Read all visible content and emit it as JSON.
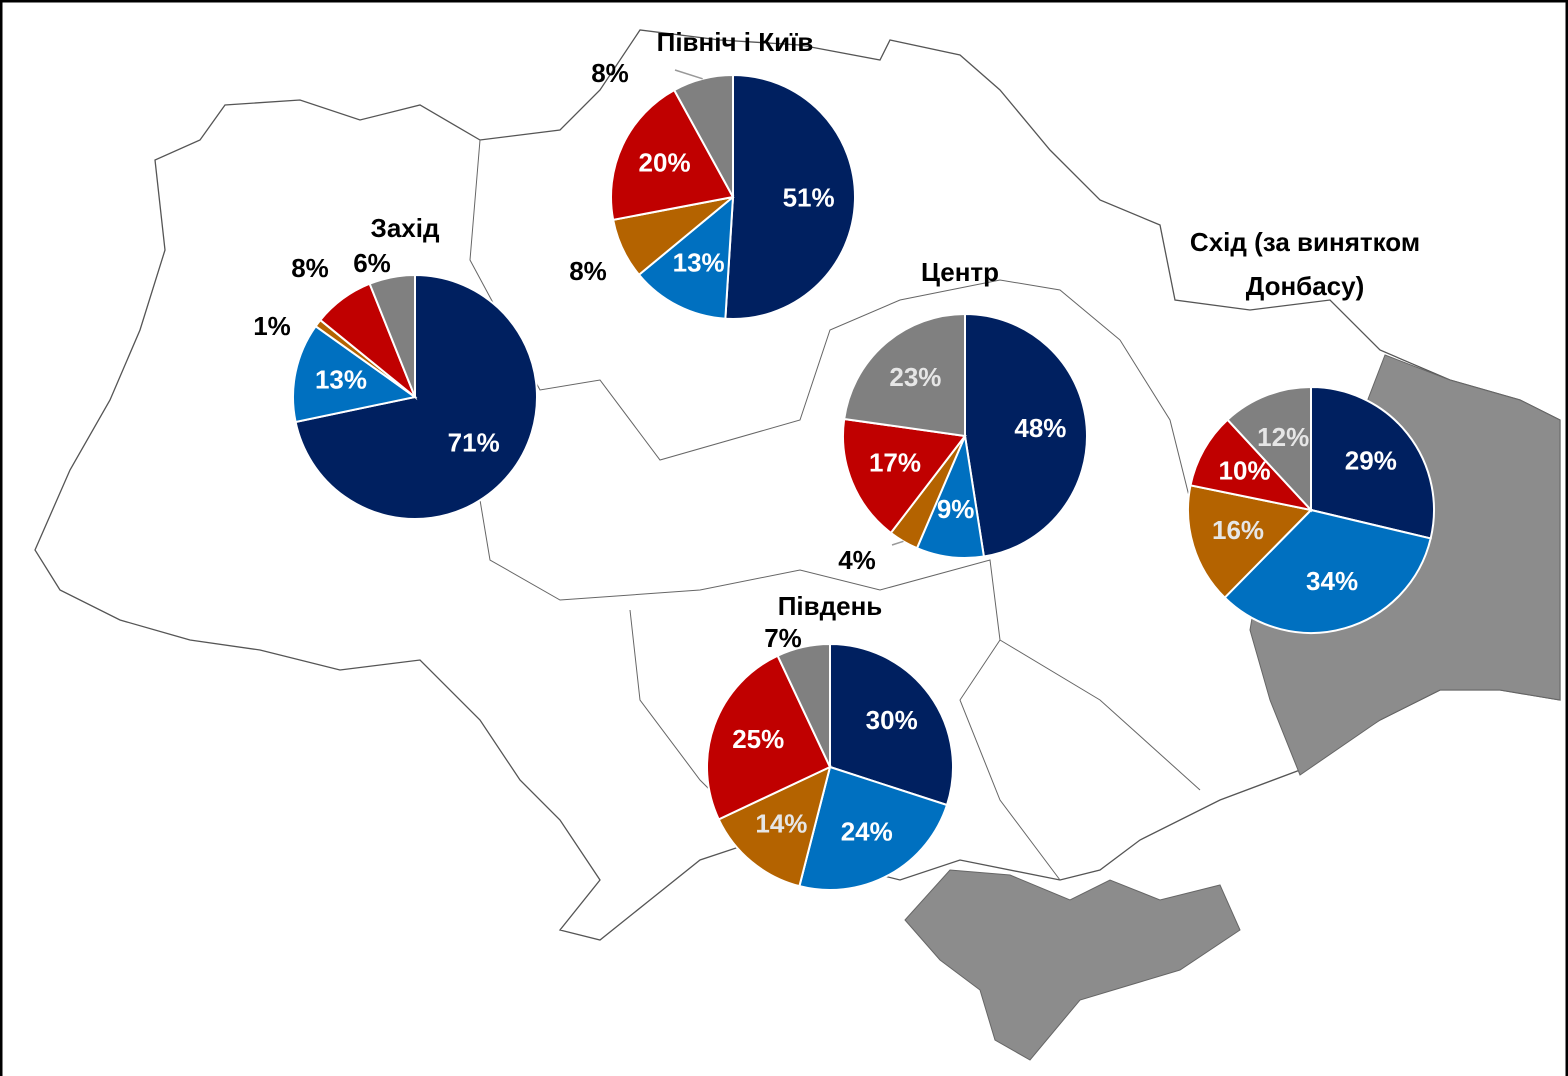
{
  "chart_data": [
    {
      "type": "pie",
      "title": "Захід",
      "values": [
        71,
        13,
        1,
        8,
        6
      ],
      "value_labels": [
        "71%",
        "13%",
        "1%",
        "8%",
        "6%"
      ],
      "colors": [
        "#002060",
        "#0070c0",
        "#b46300",
        "#c00000",
        "#808080"
      ]
    },
    {
      "type": "pie",
      "title": "Північ і Київ",
      "values": [
        51,
        13,
        8,
        20,
        8
      ],
      "value_labels": [
        "51%",
        "13%",
        "8%",
        "20%",
        "8%"
      ],
      "colors": [
        "#002060",
        "#0070c0",
        "#b46300",
        "#c00000",
        "#808080"
      ]
    },
    {
      "type": "pie",
      "title": "Центр",
      "values": [
        48,
        9,
        4,
        17,
        23
      ],
      "value_labels": [
        "48%",
        "9%",
        "4%",
        "17%",
        "23%"
      ],
      "colors": [
        "#002060",
        "#0070c0",
        "#b46300",
        "#c00000",
        "#808080"
      ]
    },
    {
      "type": "pie",
      "title": "Схід (за винятком Донбасу)",
      "values": [
        29,
        34,
        16,
        10,
        12
      ],
      "value_labels": [
        "29%",
        "34%",
        "16%",
        "10%",
        "12%"
      ],
      "colors": [
        "#002060",
        "#0070c0",
        "#b46300",
        "#c00000",
        "#808080"
      ]
    },
    {
      "type": "pie",
      "title": "Південь",
      "values": [
        30,
        24,
        14,
        25,
        7
      ],
      "value_labels": [
        "30%",
        "24%",
        "14%",
        "25%",
        "7%"
      ],
      "colors": [
        "#002060",
        "#0070c0",
        "#b46300",
        "#c00000",
        "#808080"
      ]
    }
  ]
}
